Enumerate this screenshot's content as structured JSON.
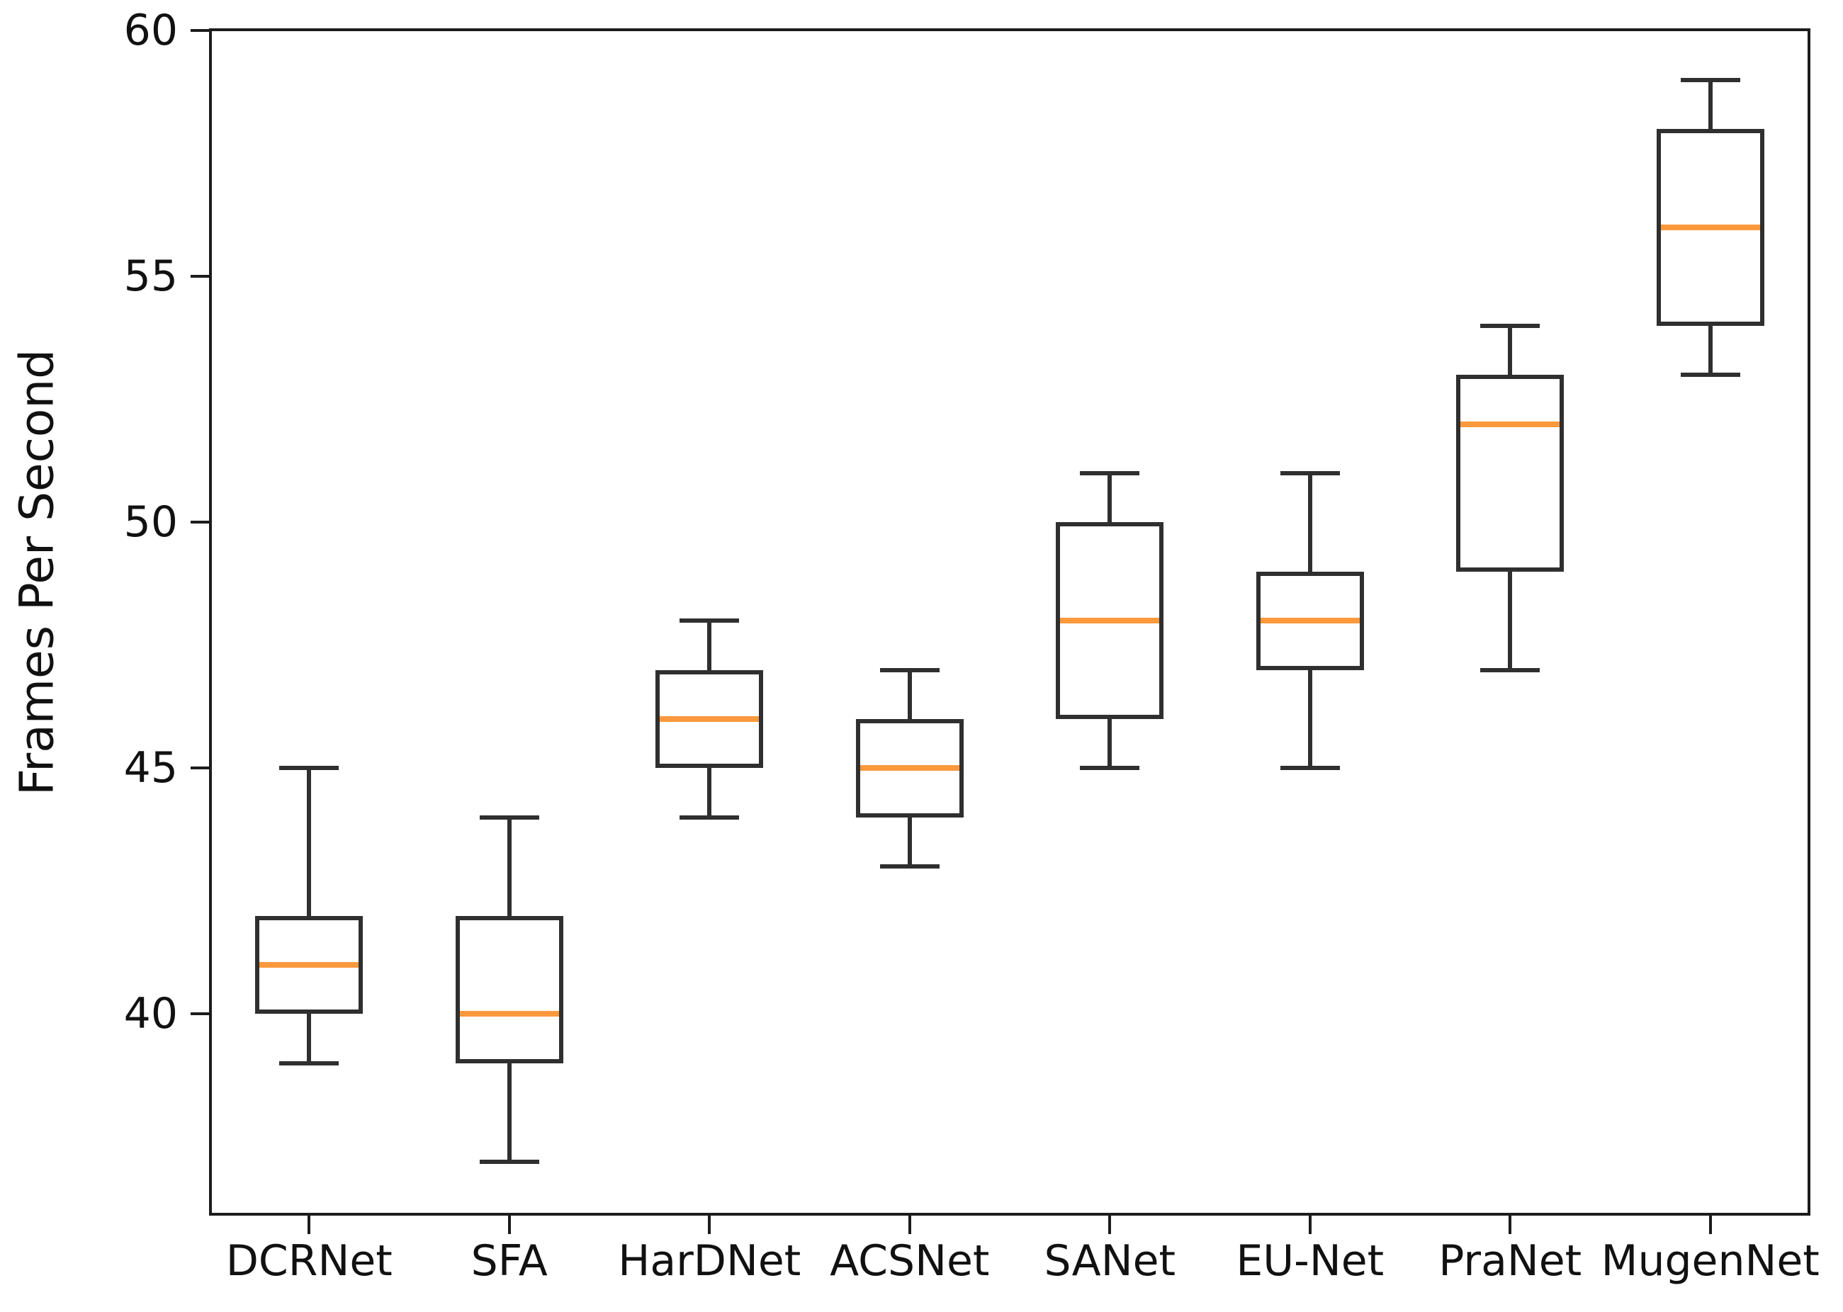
{
  "chart_data": {
    "type": "boxplot",
    "title": "",
    "xlabel": "",
    "ylabel": "Frames Per Second",
    "categories": [
      "DCRNet",
      "SFA",
      "HarDNet",
      "ACSNet",
      "SANet",
      "EU-Net",
      "PraNet",
      "MugenNet"
    ],
    "series": [
      {
        "name": "DCRNet",
        "whislo": 39,
        "q1": 40,
        "med": 41,
        "q3": 42,
        "whishi": 45
      },
      {
        "name": "SFA",
        "whislo": 37,
        "q1": 39,
        "med": 40,
        "q3": 42,
        "whishi": 44
      },
      {
        "name": "HarDNet",
        "whislo": 44,
        "q1": 45,
        "med": 46,
        "q3": 47,
        "whishi": 48
      },
      {
        "name": "ACSNet",
        "whislo": 43,
        "q1": 44,
        "med": 45,
        "q3": 46,
        "whishi": 47
      },
      {
        "name": "SANet",
        "whislo": 45,
        "q1": 46,
        "med": 48,
        "q3": 50,
        "whishi": 51
      },
      {
        "name": "EU-Net",
        "whislo": 45,
        "q1": 47,
        "med": 48,
        "q3": 49,
        "whishi": 51
      },
      {
        "name": "PraNet",
        "whislo": 47,
        "q1": 49,
        "med": 52,
        "q3": 53,
        "whishi": 54
      },
      {
        "name": "MugenNet",
        "whislo": 53,
        "q1": 54,
        "med": 56,
        "q3": 58,
        "whishi": 59
      }
    ],
    "ylim": [
      35.9,
      60.05
    ],
    "yticks": [
      40,
      45,
      50,
      55,
      60
    ],
    "grid": false,
    "legend": null,
    "colors": {
      "box_line": "#2f2f2f",
      "median": "#fb993c",
      "spine": "#1c1c1c",
      "text": "#111111",
      "background": "#ffffff"
    }
  }
}
